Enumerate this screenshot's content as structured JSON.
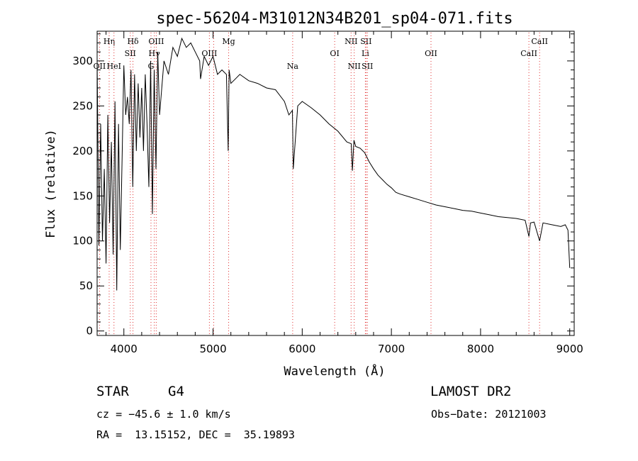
{
  "chart_data": {
    "type": "line",
    "title": "spec-56204-M31012N34B201_sp04-071.fits",
    "xlabel": "Wavelength (Å)",
    "ylabel": "Flux (relative)",
    "xlim": [
      3700,
      9050
    ],
    "ylim": [
      -5,
      333
    ],
    "xticks": [
      4000,
      5000,
      6000,
      7000,
      8000,
      9000
    ],
    "yticks": [
      0,
      50,
      100,
      150,
      200,
      250,
      300
    ],
    "grid": false,
    "series": [
      {
        "x": [
          3700,
          3720,
          3740,
          3760,
          3780,
          3800,
          3820,
          3840,
          3860,
          3880,
          3900,
          3920,
          3940,
          3960,
          3980,
          4000,
          4020,
          4040,
          4060,
          4080,
          4100,
          4120,
          4140,
          4160,
          4180,
          4200,
          4220,
          4240,
          4260,
          4280,
          4300,
          4320,
          4340,
          4360,
          4380,
          4400,
          4450,
          4500,
          4550,
          4600,
          4650,
          4700,
          4750,
          4800,
          4850,
          4860,
          4900,
          4950,
          5000,
          5050,
          5100,
          5150,
          5170,
          5180,
          5200,
          5250,
          5300,
          5400,
          5500,
          5600,
          5700,
          5800,
          5850,
          5890,
          5900,
          5950,
          6000,
          6100,
          6200,
          6300,
          6400,
          6500,
          6550,
          6563,
          6580,
          6600,
          6650,
          6700,
          6750,
          6800,
          6850,
          6900,
          6950,
          7000,
          7050,
          7100,
          7200,
          7300,
          7400,
          7500,
          7600,
          7700,
          7800,
          7900,
          8000,
          8100,
          8200,
          8300,
          8400,
          8500,
          8542,
          8560,
          8600,
          8662,
          8700,
          8800,
          8900,
          8950,
          8980,
          9000
        ],
        "y": [
          300,
          95,
          230,
          100,
          180,
          75,
          240,
          120,
          210,
          85,
          255,
          45,
          230,
          90,
          190,
          295,
          240,
          260,
          230,
          290,
          160,
          285,
          200,
          275,
          215,
          270,
          200,
          285,
          230,
          160,
          300,
          130,
          290,
          180,
          310,
          240,
          300,
          285,
          315,
          305,
          325,
          315,
          320,
          310,
          300,
          280,
          305,
          295,
          305,
          285,
          290,
          285,
          200,
          290,
          275,
          280,
          285,
          278,
          275,
          270,
          268,
          255,
          240,
          245,
          180,
          250,
          255,
          248,
          240,
          230,
          222,
          210,
          208,
          178,
          212,
          205,
          203,
          198,
          188,
          180,
          173,
          168,
          163,
          159,
          154,
          152,
          149,
          146,
          143,
          140,
          138,
          136,
          134,
          133,
          131,
          129,
          127,
          126,
          125,
          123,
          105,
          120,
          121,
          100,
          120,
          118,
          116,
          118,
          112,
          70
        ]
      }
    ],
    "vlines": [
      {
        "wave": 3727,
        "label": "OII",
        "row": 3
      },
      {
        "wave": 3835,
        "label": "Hη",
        "row": 1
      },
      {
        "wave": 3889,
        "label": "HeI",
        "row": 3
      },
      {
        "wave": 4072,
        "label": "SII",
        "row": 2
      },
      {
        "wave": 4102,
        "label": "Hδ",
        "row": 1
      },
      {
        "wave": 4304,
        "label": "G",
        "row": 3
      },
      {
        "wave": 4341,
        "label": "Hγ",
        "row": 2
      },
      {
        "wave": 4363,
        "label": "OIII",
        "row": 1
      },
      {
        "wave": 4959,
        "label": "OIII",
        "row": 2
      },
      {
        "wave": 5007,
        "label": "",
        "row": 0
      },
      {
        "wave": 5175,
        "label": "Mg",
        "row": 1
      },
      {
        "wave": 5893,
        "label": "Na",
        "row": 3
      },
      {
        "wave": 6364,
        "label": "OI",
        "row": 2
      },
      {
        "wave": 6548,
        "label": "NII",
        "row": 1
      },
      {
        "wave": 6583,
        "label": "NII",
        "row": 3
      },
      {
        "wave": 6708,
        "label": "Li",
        "row": 2
      },
      {
        "wave": 6716,
        "label": "SII",
        "row": 1
      },
      {
        "wave": 6731,
        "label": "SII",
        "row": 3
      },
      {
        "wave": 7444,
        "label": "OII",
        "row": 2
      },
      {
        "wave": 8542,
        "label": "CaII",
        "row": 2
      },
      {
        "wave": 8662,
        "label": "CaII",
        "row": 1
      }
    ],
    "colors": {
      "spectrum": "#000000",
      "lines": "#e03030"
    }
  },
  "info": {
    "class": "STAR",
    "subclass": "G4",
    "survey": "LAMOST DR2",
    "cz": "cz = −45.6 ± 1.0 km/s",
    "obs_date": "Obs−Date: 20121003",
    "radec": "RA =  13.15152, DEC =  35.19893"
  }
}
